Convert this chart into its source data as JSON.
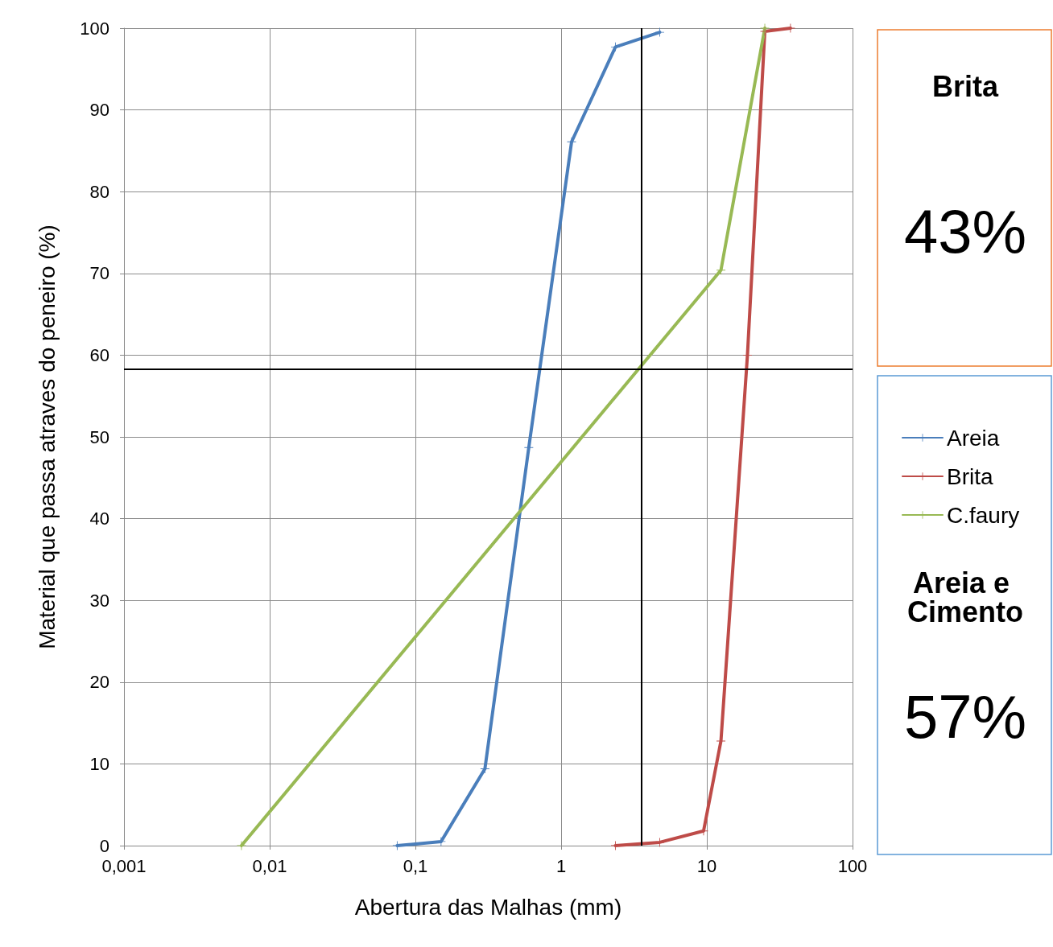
{
  "chart_data": {
    "type": "line",
    "xlabel": "Abertura das Malhas (mm)",
    "ylabel": "Material que passa atraves do peneiro (%)",
    "log": "x",
    "xlim": [
      0.001,
      100
    ],
    "ylim": [
      0,
      100
    ],
    "xticks": [
      {
        "value": 0.001,
        "label": "0,001"
      },
      {
        "value": 0.01,
        "label": "0,01"
      },
      {
        "value": 0.1,
        "label": "0,1"
      },
      1,
      10,
      100
    ],
    "yticks": [
      0,
      10,
      20,
      30,
      40,
      50,
      60,
      70,
      80,
      90,
      100
    ],
    "grid": true,
    "legend": "right",
    "marker": "cross",
    "line_style": "solid",
    "series": [
      {
        "name": "Areia",
        "color": "#4a7ebb",
        "x": [
          0.075,
          0.15,
          0.3,
          0.6,
          1.18,
          2.36,
          4.75
        ],
        "values": [
          0,
          0.5,
          9.4,
          48.7,
          86.1,
          97.7,
          99.5
        ]
      },
      {
        "name": "Brita",
        "color": "#be4b48",
        "x": [
          2.36,
          4.75,
          9.5,
          12.5,
          19,
          25,
          37.5
        ],
        "values": [
          0,
          0.4,
          1.8,
          12.8,
          60,
          99.6,
          100
        ]
      },
      {
        "name": "C.faury",
        "color": "#98b954",
        "x": [
          0.0064,
          12.5,
          25
        ],
        "values": [
          0,
          70.4,
          100
        ]
      }
    ],
    "ref_lines": [
      {
        "axis": "x",
        "value": 3.57,
        "color": "#000000"
      },
      {
        "axis": "y",
        "value": 58.3,
        "color": "#000000"
      }
    ],
    "annotations": [
      "Brita",
      "43%",
      "Areia e Cimento",
      "57%"
    ]
  }
}
